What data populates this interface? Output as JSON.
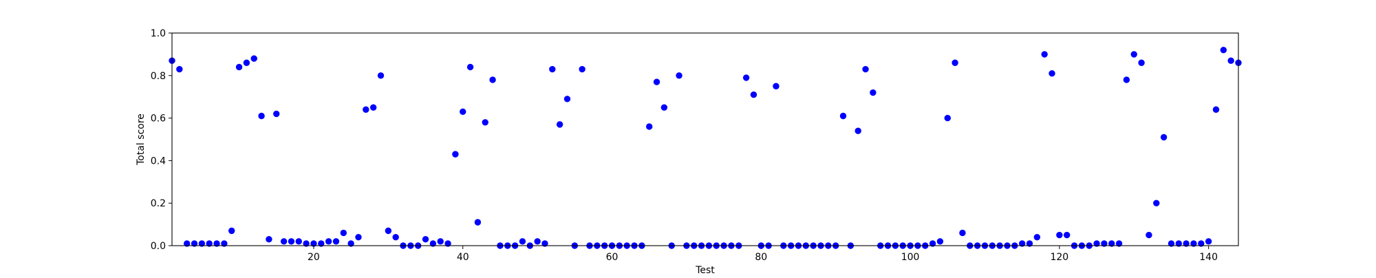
{
  "chart_data": {
    "type": "scatter",
    "title": "",
    "xlabel": "Test",
    "ylabel": "Total score",
    "xlim": [
      1,
      144
    ],
    "ylim": [
      0.0,
      1.0
    ],
    "xticks": [
      20,
      40,
      60,
      80,
      100,
      120,
      140
    ],
    "xtick_labels": [
      "20",
      "40",
      "60",
      "80",
      "100",
      "120",
      "140"
    ],
    "yticks": [
      0.0,
      0.2,
      0.4,
      0.6,
      0.8,
      1.0
    ],
    "ytick_labels": [
      "0.0",
      "0.2",
      "0.4",
      "0.6",
      "0.8",
      "1.0"
    ],
    "grid": false,
    "marker_color": "#0000ff",
    "series": [
      {
        "x": [
          1,
          2,
          3,
          4,
          5,
          6,
          7,
          8,
          9,
          10,
          11,
          12,
          13,
          14,
          15,
          16,
          17,
          18,
          19,
          20,
          21,
          22,
          23,
          24,
          25,
          26,
          27,
          28,
          29,
          30,
          31,
          32,
          33,
          34,
          35,
          36,
          37,
          38,
          39,
          40,
          41,
          42,
          43,
          44,
          45,
          46,
          47,
          48,
          49,
          50,
          51,
          52,
          53,
          54,
          55,
          56,
          57,
          58,
          59,
          60,
          61,
          62,
          63,
          64,
          65,
          66,
          67,
          68,
          69,
          70,
          71,
          72,
          73,
          74,
          75,
          76,
          77,
          78,
          79,
          80,
          81,
          82,
          83,
          84,
          85,
          86,
          87,
          88,
          89,
          90,
          91,
          92,
          93,
          94,
          95,
          96,
          97,
          98,
          99,
          100,
          101,
          102,
          103,
          104,
          105,
          106,
          107,
          108,
          109,
          110,
          111,
          112,
          113,
          114,
          115,
          116,
          117,
          118,
          119,
          120,
          121,
          122,
          123,
          124,
          125,
          126,
          127,
          128,
          129,
          130,
          131,
          132,
          133,
          134,
          135,
          136,
          137,
          138,
          139,
          140,
          141,
          142,
          143,
          144
        ],
        "y": [
          0.87,
          0.83,
          0.01,
          0.01,
          0.01,
          0.01,
          0.01,
          0.01,
          0.07,
          0.84,
          0.86,
          0.88,
          0.61,
          0.03,
          0.62,
          0.02,
          0.02,
          0.02,
          0.01,
          0.01,
          0.01,
          0.02,
          0.02,
          0.06,
          0.01,
          0.04,
          0.64,
          0.65,
          0.8,
          0.07,
          0.04,
          0.0,
          0.0,
          0.0,
          0.03,
          0.01,
          0.02,
          0.01,
          0.43,
          0.63,
          0.84,
          0.11,
          0.58,
          0.78,
          0.0,
          0.0,
          0.0,
          0.02,
          0.0,
          0.02,
          0.01,
          0.83,
          0.57,
          0.69,
          0.0,
          0.83,
          0.0,
          0.0,
          0.0,
          0.0,
          0.0,
          0.0,
          0.0,
          0.0,
          0.56,
          0.77,
          0.65,
          0.0,
          0.8,
          0.0,
          0.0,
          0.0,
          0.0,
          0.0,
          0.0,
          0.0,
          0.0,
          0.79,
          0.71,
          0.0,
          0.0,
          0.75,
          0.0,
          0.0,
          0.0,
          0.0,
          0.0,
          0.0,
          0.0,
          0.0,
          0.61,
          0.0,
          0.54,
          0.83,
          0.72,
          0.0,
          0.0,
          0.0,
          0.0,
          0.0,
          0.0,
          0.0,
          0.01,
          0.02,
          0.6,
          0.86,
          0.06,
          0.0,
          0.0,
          0.0,
          0.0,
          0.0,
          0.0,
          0.0,
          0.01,
          0.01,
          0.04,
          0.9,
          0.81,
          0.05,
          0.05,
          0.0,
          0.0,
          0.0,
          0.01,
          0.01,
          0.01,
          0.01,
          0.78,
          0.9,
          0.86,
          0.05,
          0.2,
          0.51,
          0.01,
          0.01,
          0.01,
          0.01,
          0.01,
          0.02,
          0.64,
          0.92,
          0.87,
          0.86
        ]
      }
    ]
  }
}
